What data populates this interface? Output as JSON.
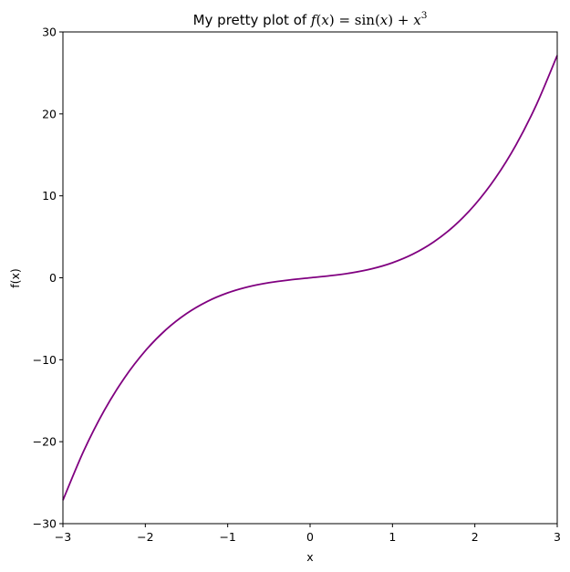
{
  "chart_data": {
    "type": "line",
    "title": {
      "prefix": "My pretty plot of ",
      "f": "f",
      "lp1": "(",
      "x1": "x",
      "rp1": ")",
      "eq": " = ",
      "sin": "sin",
      "lp2": "(",
      "x2": "x",
      "rp2": ")",
      "plus": " + ",
      "x3": "x",
      "exp": "3"
    },
    "xlabel": "x",
    "ylabel": "f(x)",
    "xlim": [
      -3,
      3
    ],
    "ylim": [
      -30,
      30
    ],
    "xticks": [
      -3,
      -2,
      -1,
      0,
      1,
      2,
      3
    ],
    "xtick_labels": [
      "−3",
      "−2",
      "−1",
      "0",
      "1",
      "2",
      "3"
    ],
    "yticks": [
      -30,
      -20,
      -10,
      0,
      10,
      20,
      30
    ],
    "ytick_labels": [
      "−30",
      "−20",
      "−10",
      "0",
      "10",
      "20",
      "30"
    ],
    "grid": false,
    "series": [
      {
        "color": "#800080",
        "x": [
          -3.0,
          -2.75,
          -2.5,
          -2.25,
          -2.0,
          -1.75,
          -1.5,
          -1.25,
          -1.0,
          -0.75,
          -0.5,
          -0.25,
          0.0,
          0.25,
          0.5,
          0.75,
          1.0,
          1.25,
          1.5,
          1.75,
          2.0,
          2.25,
          2.5,
          2.75,
          3.0
        ],
        "y": [
          -27.14,
          -21.18,
          -16.22,
          -12.17,
          -8.91,
          -6.34,
          -4.37,
          -2.9,
          -1.84,
          -1.1,
          -0.6,
          -0.26,
          0.0,
          0.26,
          0.6,
          1.1,
          1.84,
          2.9,
          4.37,
          6.34,
          8.91,
          12.17,
          16.22,
          21.18,
          27.14
        ]
      }
    ]
  }
}
